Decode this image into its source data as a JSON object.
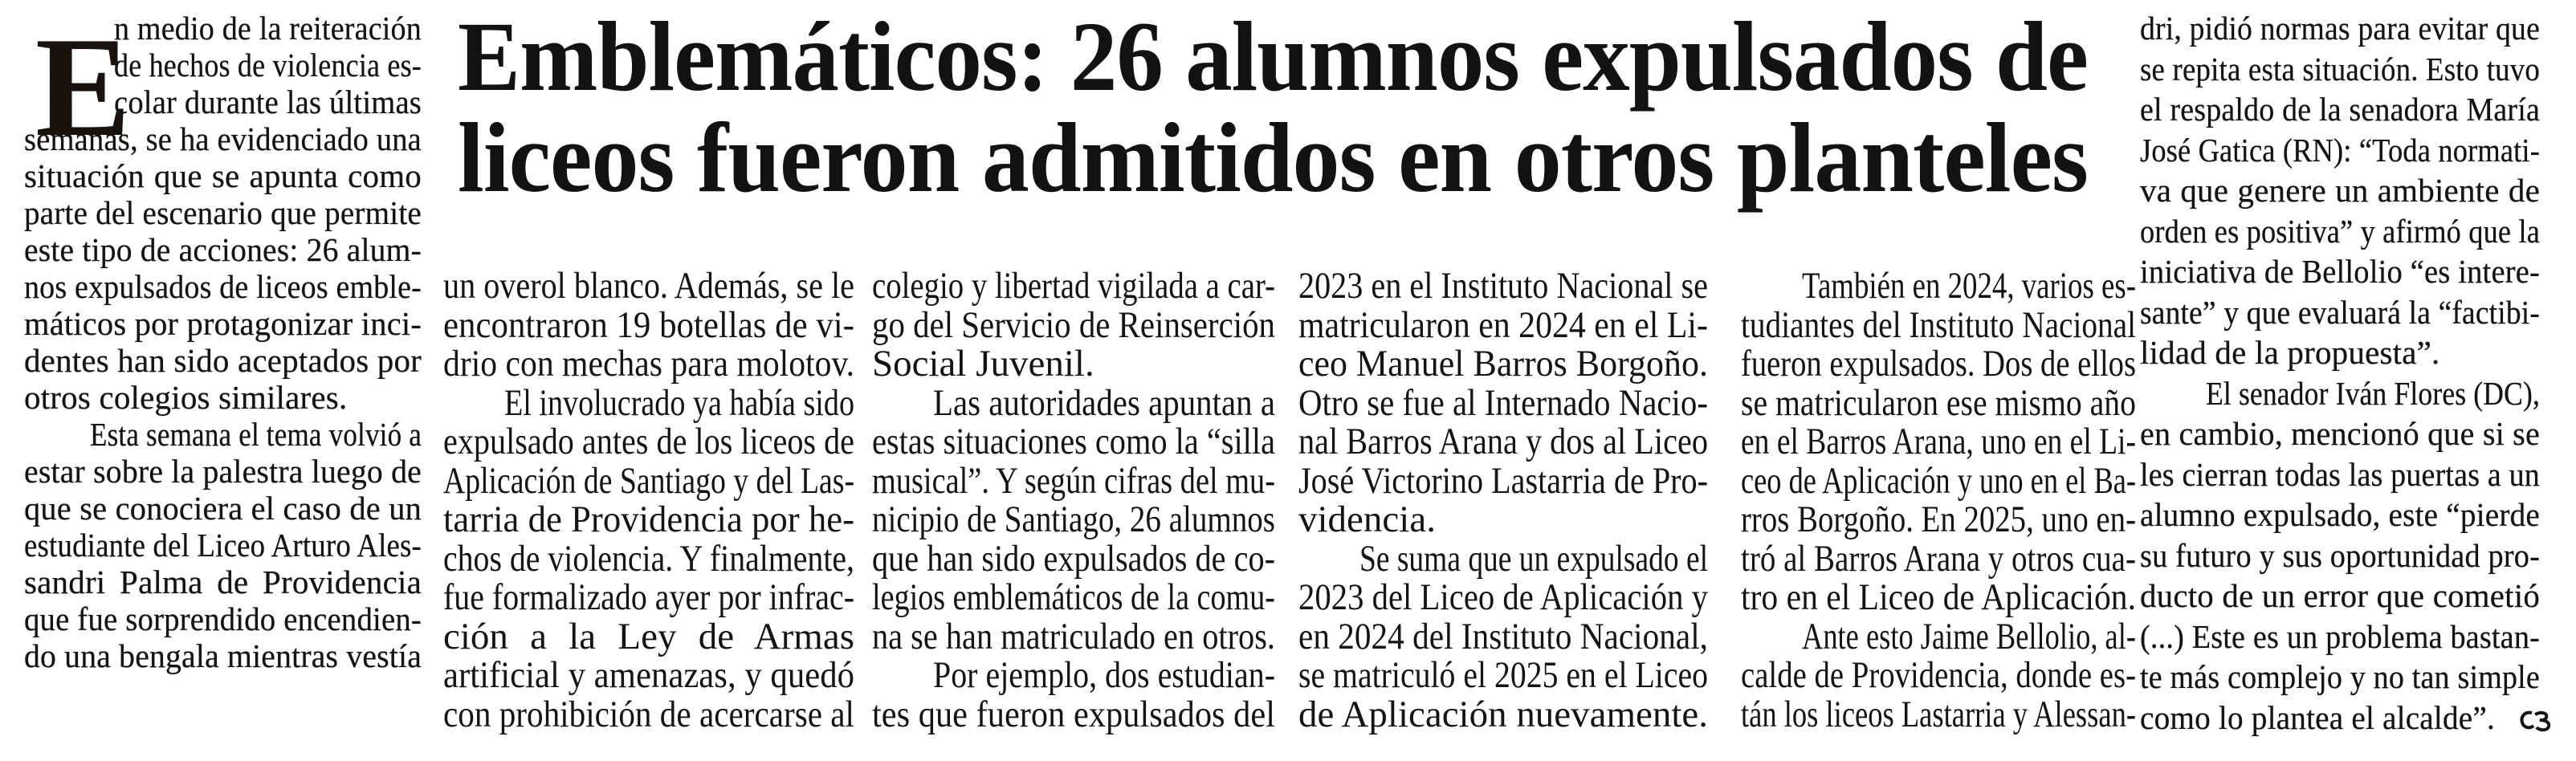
{
  "article": {
    "headline": {
      "lines": [
        "Emblemáticos: 26 alumnos expulsados de",
        "liceos fueron admitidos en otros planteles"
      ]
    },
    "drop_cap": "E",
    "end_mark_icon": "end-of-article-mark-icon",
    "columns": [
      {
        "paragraphs": [
          {
            "indent": false,
            "lines": [
              "n medio de la reiteración",
              "de hechos de violencia es-",
              "colar durante las últimas",
              "semanas, se ha evidenciado una",
              "situación que se apunta como",
              "parte del escenario que permite",
              "este tipo de acciones: 26 alum-",
              "nos expulsados de liceos emble-",
              "máticos por protagonizar inci-",
              "dentes han sido aceptados por",
              "otros colegios similares."
            ]
          },
          {
            "indent": true,
            "lines": [
              "Esta semana el tema volvió a",
              "estar sobre la palestra luego de",
              "que se conociera el caso de un",
              "estudiante del Liceo Arturo Ales-",
              "sandri Palma de Providencia",
              "que fue sorprendido encendien-",
              "do una bengala mientras vestía"
            ]
          }
        ]
      },
      {
        "paragraphs": [
          {
            "indent": false,
            "lines": [
              "un overol blanco. Además, se le",
              "encontraron 19 botellas de vi-",
              "drio con mechas para molotov."
            ]
          },
          {
            "indent": true,
            "lines": [
              "El involucrado ya había sido",
              "expulsado antes de los liceos de",
              "Aplicación de Santiago y del Las-",
              "tarria de Providencia por he-",
              "chos de violencia. Y finalmente,",
              "fue formalizado ayer por infrac-",
              "ción a la Ley de Armas",
              "artificial y amenazas, y quedó",
              "con prohibición de acercarse al"
            ]
          }
        ]
      },
      {
        "paragraphs": [
          {
            "indent": false,
            "lines": [
              "colegio y libertad vigilada a car-",
              "go del Servicio de Reinserción",
              "Social Juvenil."
            ]
          },
          {
            "indent": true,
            "lines": [
              "Las autoridades apuntan a",
              "estas situaciones como la “silla",
              "musical”. Y según cifras del mu-",
              "nicipio de Santiago, 26 alumnos",
              "que han sido expulsados de co-",
              "legios emblemáticos de la comu-",
              "na se han matriculado en otros."
            ]
          },
          {
            "indent": true,
            "lines": [
              "Por ejemplo, dos estudian-",
              "tes que fueron expulsados del"
            ]
          }
        ]
      },
      {
        "paragraphs": [
          {
            "indent": false,
            "lines": [
              "2023 en el Instituto Nacional se",
              "matricularon en 2024 en el Li-",
              "ceo Manuel Barros Borgoño.",
              "Otro se fue al Internado Nacio-",
              "nal Barros Arana y dos al Liceo",
              "José Victorino Lastarria de Pro-",
              "videncia."
            ]
          },
          {
            "indent": true,
            "lines": [
              "Se suma que un expulsado el",
              "2023 del Liceo de Aplicación y",
              "en 2024 del Instituto Nacional,",
              "se matriculó el 2025 en el Liceo",
              "de Aplicación nuevamente."
            ]
          }
        ]
      },
      {
        "paragraphs": [
          {
            "indent": true,
            "lines": [
              "También en 2024, varios es-",
              "tudiantes del Instituto Nacional",
              "fueron expulsados. Dos de ellos",
              "se matricularon ese mismo año",
              "en el Barros Arana, uno en el Li-",
              "ceo de Aplicación y uno en el Ba-",
              "rros Borgoño. En 2025, uno en-",
              "tró al Barros Arana y otros cua-",
              "tro en el Liceo de Aplicación."
            ]
          },
          {
            "indent": true,
            "lines": [
              "Ante esto Jaime Bellolio, al-",
              "calde de Providencia, donde es-",
              "tán los liceos Lastarria y Alessan-"
            ]
          }
        ]
      },
      {
        "paragraphs": [
          {
            "indent": false,
            "lines": [
              "dri, pidió normas para evitar que",
              "se repita esta situación. Esto tuvo",
              "el respaldo de la senadora María",
              "José Gatica (RN): “Toda normati-",
              "va que genere un ambiente de",
              "orden es positiva” y afirmó que la",
              "iniciativa de Bellolio “es intere-",
              "sante” y que evaluará la “factibi-",
              "lidad de la propuesta”."
            ]
          },
          {
            "indent": true,
            "lines": [
              "El senador Iván Flores (DC),",
              "en cambio, mencionó que si se",
              "les cierran todas las puertas a un",
              "alumno expulsado, este “pierde",
              "su futuro y sus oportunidad pro-",
              "ducto de un error que cometió",
              "(...) Este es un problema bastan-",
              "te más complejo y no tan simple",
              "como lo plantea el alcalde”."
            ]
          }
        ]
      }
    ]
  }
}
